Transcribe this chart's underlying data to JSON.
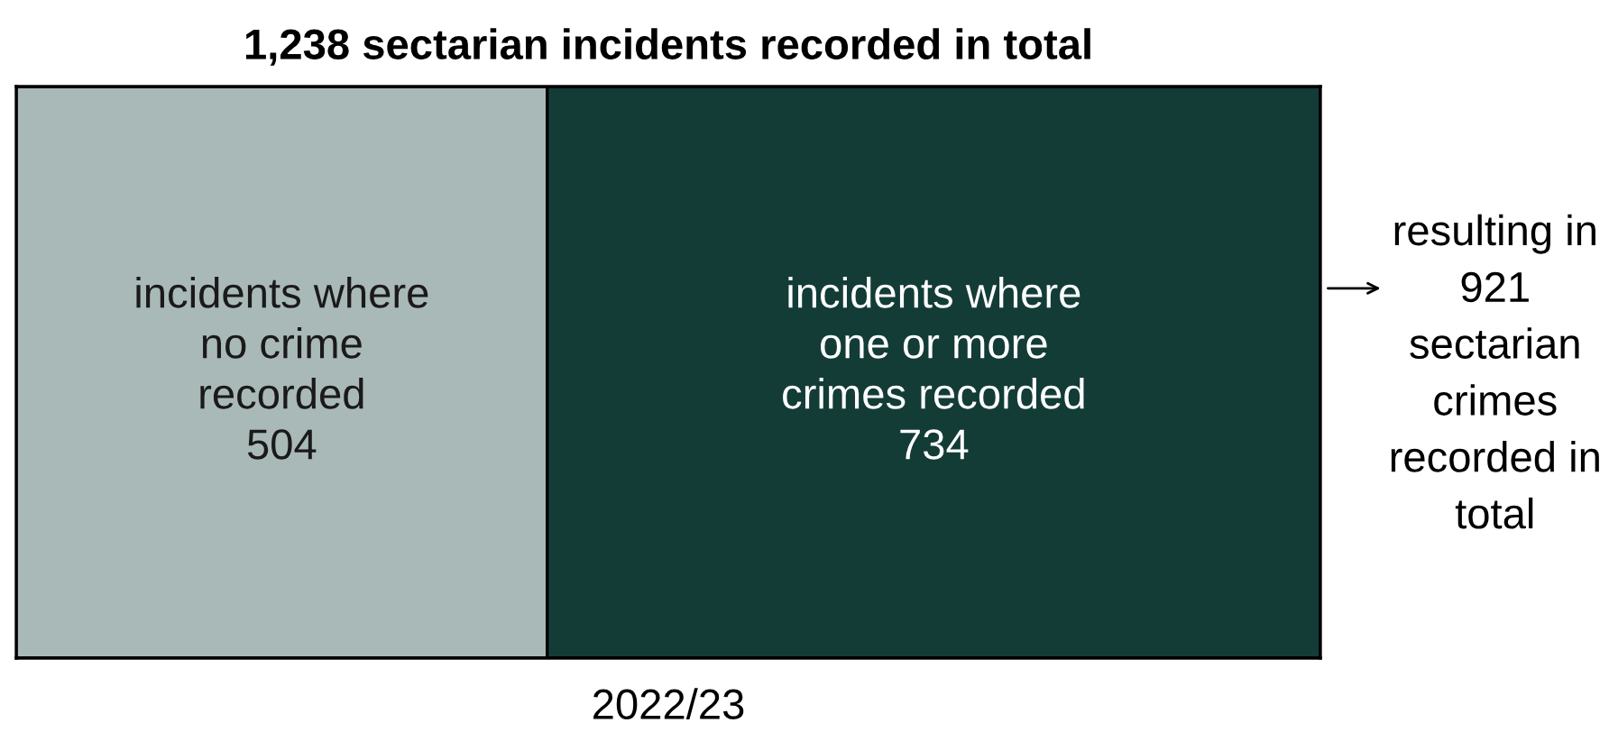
{
  "chart_data": {
    "type": "other",
    "title": "1,238 sectarian incidents recorded in total",
    "xlabel": "2022/23",
    "categories": [
      "incidents where\nno crime\nrecorded",
      "incidents where\none or more\ncrimes recorded"
    ],
    "values": [
      504,
      734
    ],
    "colors": [
      "#a9b9b7",
      "#133c37"
    ],
    "data_labels": true,
    "annotations": [
      "resulting in\n921\nsectarian\ncrimes\nrecorded in\ntotal"
    ]
  }
}
